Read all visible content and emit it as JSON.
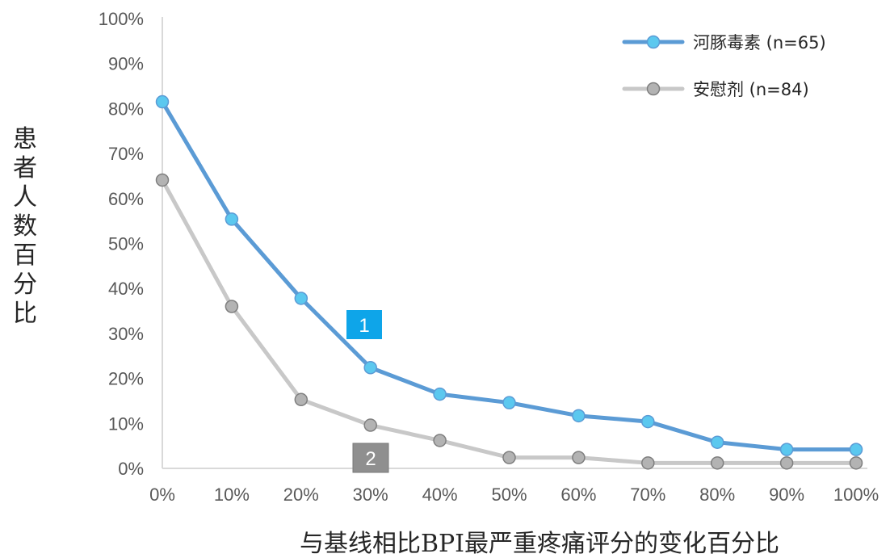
{
  "chart_data": {
    "type": "line",
    "title": "",
    "xlabel": "与基线相比BPI最严重疼痛评分的变化百分比",
    "ylabel": "患者人数百分比",
    "categories": [
      "0%",
      "10%",
      "20%",
      "30%",
      "40%",
      "50%",
      "60%",
      "70%",
      "80%",
      "90%",
      "100%"
    ],
    "y_ticks": [
      "0%",
      "10%",
      "20%",
      "30%",
      "40%",
      "50%",
      "60%",
      "70%",
      "80%",
      "90%",
      "100%"
    ],
    "ylim": [
      0,
      100
    ],
    "grid": false,
    "legend_position": "top-right",
    "series": [
      {
        "name": "河豚毒素 (n=65)",
        "color": "#5b9bd5",
        "marker_fill": "#5bc8ef",
        "values": [
          81.5,
          55.4,
          37.8,
          22.4,
          16.5,
          14.6,
          11.7,
          10.4,
          5.8,
          4.2,
          4.2
        ]
      },
      {
        "name": "安慰剂 (n=84)",
        "color": "#c8c8c8",
        "marker_fill": "#b3b3b3",
        "values": [
          64.1,
          36.0,
          15.3,
          9.6,
          6.2,
          2.4,
          2.4,
          1.2,
          1.2,
          1.2,
          1.2
        ]
      }
    ],
    "annotations": [
      {
        "text": "1",
        "color": "#0ea5e9",
        "x": "30%",
        "y": 32.7
      },
      {
        "text": "2",
        "color": "#8f8f8f",
        "x": "30%",
        "y": 2.4
      }
    ]
  }
}
